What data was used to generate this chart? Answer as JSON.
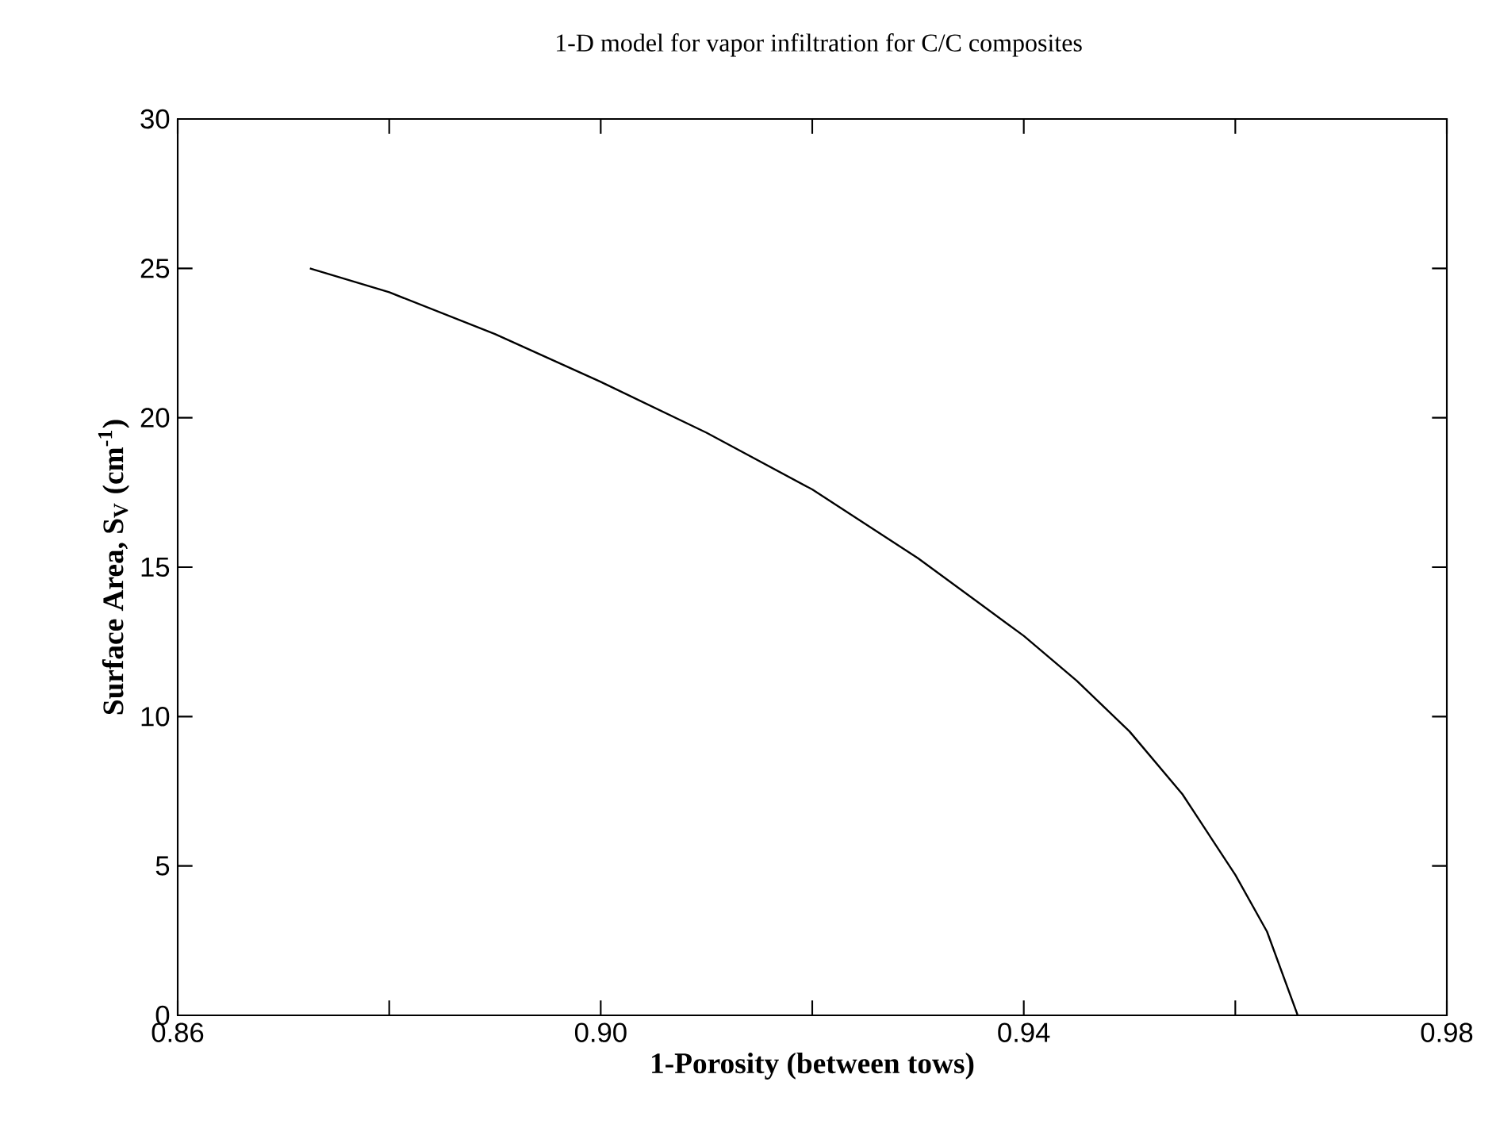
{
  "chart_data": {
    "type": "line",
    "title": "1-D model for vapor infiltration for C/C composites",
    "xlabel": "1-Porosity (between tows)",
    "ylabel": "Surface Area, S$_{V}$ (cm$^{-1}$)",
    "xlim": [
      0.86,
      0.98
    ],
    "ylim": [
      0,
      30
    ],
    "xticks": [
      {
        "value": 0.86,
        "label": "0.86"
      },
      {
        "value": 0.88,
        "label": null
      },
      {
        "value": 0.9,
        "label": "0.90"
      },
      {
        "value": 0.92,
        "label": null
      },
      {
        "value": 0.94,
        "label": "0.94"
      },
      {
        "value": 0.96,
        "label": null
      },
      {
        "value": 0.98,
        "label": "0.98"
      }
    ],
    "yticks": [
      0,
      5,
      10,
      15,
      20,
      25,
      30
    ],
    "series": [
      {
        "color": "#000000",
        "x": [
          0.8725,
          0.88,
          0.89,
          0.9,
          0.91,
          0.92,
          0.93,
          0.94,
          0.945,
          0.95,
          0.955,
          0.96,
          0.963,
          0.9659
        ],
        "values": [
          25,
          24.2,
          22.8,
          21.2,
          19.5,
          17.6,
          15.3,
          12.7,
          11.2,
          9.5,
          7.4,
          4.7,
          2.8,
          0
        ]
      }
    ]
  }
}
